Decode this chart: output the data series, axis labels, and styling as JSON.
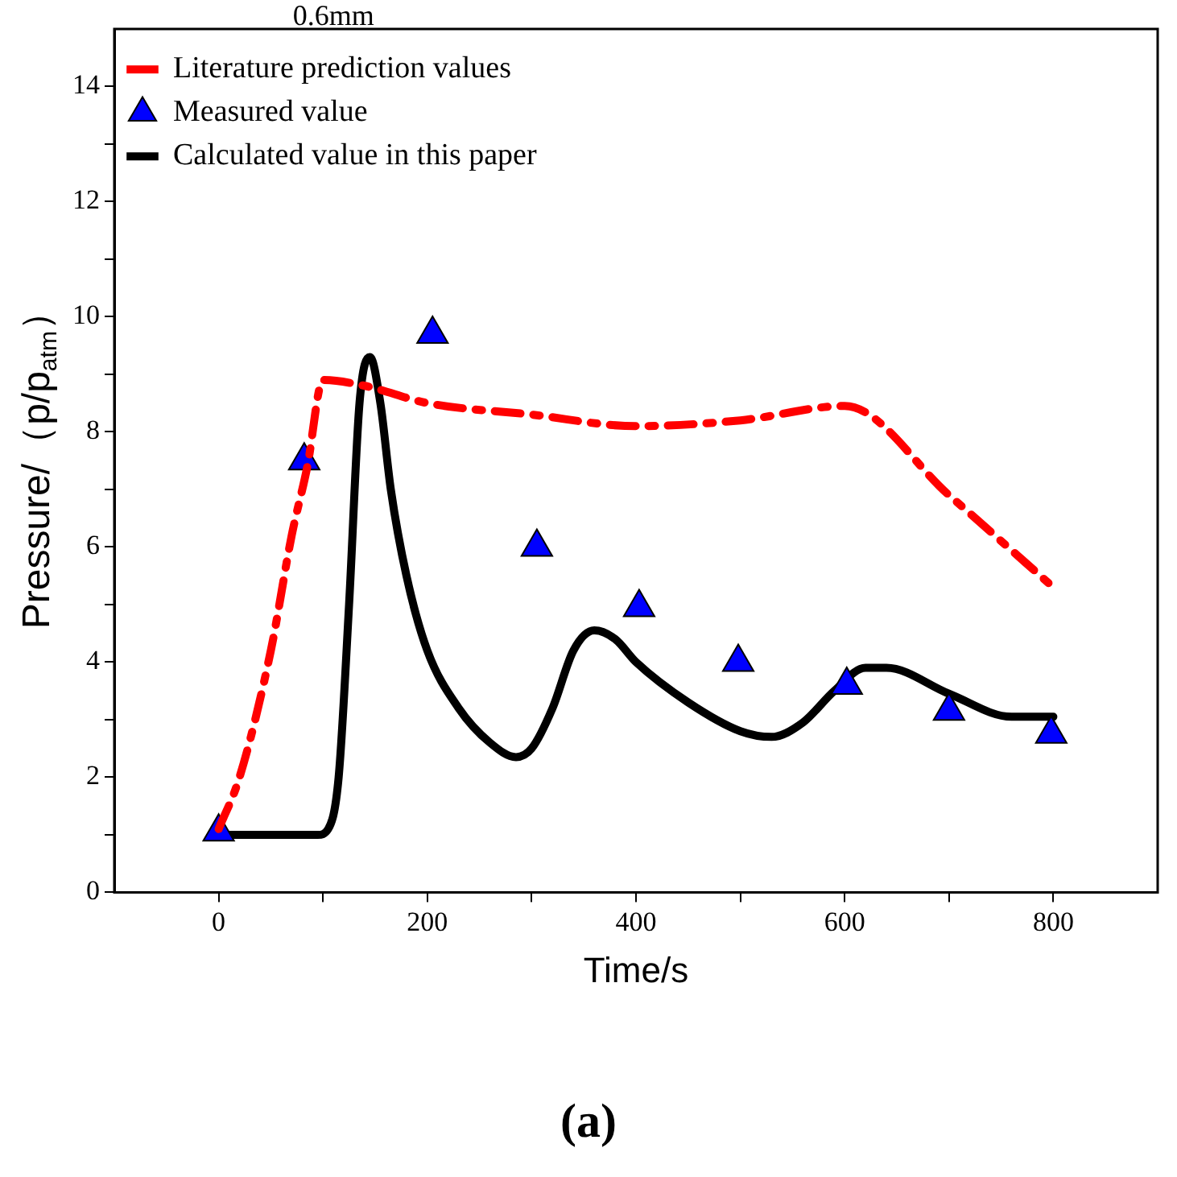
{
  "chart_data": {
    "type": "line",
    "xlabel": "Time/s",
    "ylabel": "Pressure/（p/p$_{atm}$）",
    "legend_title": "0.6mm",
    "legend": "top left",
    "grid": false,
    "xlim": [
      -100,
      900
    ],
    "xticks": [
      0,
      {
        "value": 100,
        "label": null
      },
      200,
      {
        "value": 300,
        "label": null
      },
      400,
      {
        "value": 500,
        "label": null
      },
      600,
      {
        "value": 700,
        "label": null
      },
      800
    ],
    "ylim": [
      0,
      15
    ],
    "yticks": [
      0,
      {
        "value": 1,
        "label": null
      },
      2,
      {
        "value": 3,
        "label": null
      },
      4,
      {
        "value": 5,
        "label": null
      },
      6,
      {
        "value": 7,
        "label": null
      },
      8,
      {
        "value": 9,
        "label": null
      },
      10,
      {
        "value": 11,
        "label": null
      },
      12,
      {
        "value": 13,
        "label": null
      },
      14
    ],
    "annotations": [
      "(a)"
    ],
    "series": [
      {
        "name": "Literature prediction values",
        "type": "line",
        "color": "#ff0000",
        "line_style": "dashed",
        "marker": "none",
        "x": [
          0,
          20,
          50,
          70,
          85,
          100,
          140,
          200,
          300,
          400,
          500,
          600,
          700,
          800
        ],
        "values": [
          1.1,
          2.0,
          4.2,
          6.2,
          7.4,
          8.9,
          8.8,
          8.5,
          8.3,
          8.1,
          8.2,
          8.45,
          6.9,
          5.3
        ]
      },
      {
        "name": "Measured value",
        "type": "scatter",
        "color": "#0000ff",
        "marker": "triangle",
        "x": [
          0,
          82,
          205,
          305,
          403,
          498,
          602,
          700,
          798
        ],
        "values": [
          1.05,
          7.5,
          9.7,
          6.0,
          4.95,
          4.0,
          3.6,
          3.15,
          2.75
        ]
      },
      {
        "name": "Calculated value in this paper",
        "type": "line",
        "color": "#000000",
        "line_style": "solid",
        "marker": "none",
        "x": [
          0,
          60,
          95,
          105,
          115,
          125,
          135,
          145,
          155,
          165,
          180,
          200,
          230,
          260,
          285,
          300,
          320,
          340,
          360,
          380,
          400,
          450,
          500,
          530,
          560,
          590,
          620,
          640,
          700,
          760,
          800
        ],
        "values": [
          1,
          1,
          1,
          1.1,
          2,
          5,
          8.5,
          9.3,
          8.5,
          7,
          5.5,
          4.2,
          3.2,
          2.6,
          2.35,
          2.5,
          3.2,
          4.2,
          4.55,
          4.4,
          4.0,
          3.3,
          2.8,
          2.7,
          2.95,
          3.5,
          3.9,
          3.9,
          3.45,
          3.05,
          3.05
        ]
      }
    ]
  }
}
